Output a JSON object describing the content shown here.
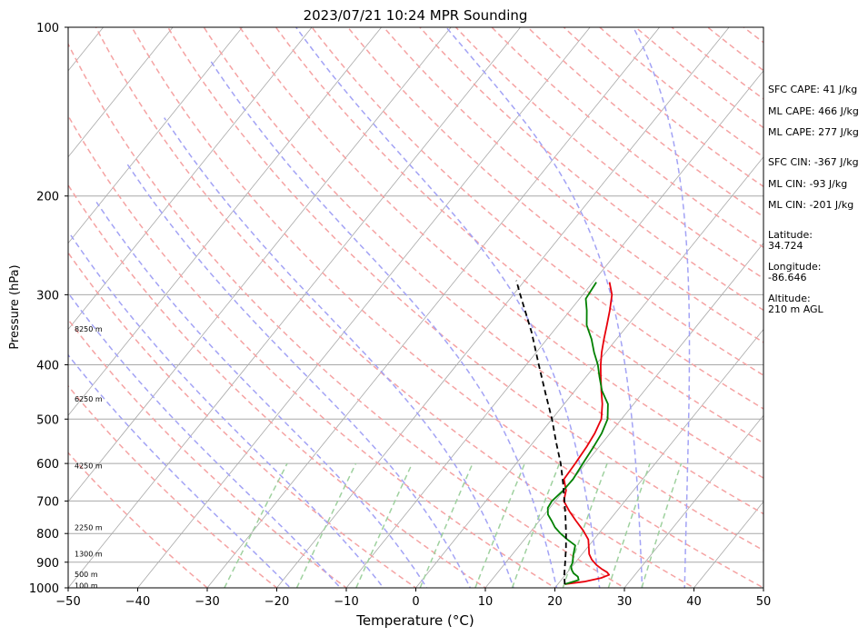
{
  "chart_data": {
    "type": "skew-t",
    "title": "2023/07/21 10:24 MPR Sounding",
    "xlabel": "Temperature (°C)",
    "ylabel": "Pressure (hPa)",
    "xlim": [
      -50,
      50
    ],
    "ylim": [
      1000,
      100
    ],
    "x_ticks": [
      -50,
      -40,
      -30,
      -20,
      -10,
      0,
      10,
      20,
      30,
      40,
      50
    ],
    "y_ticks": [
      1000,
      900,
      800,
      700,
      600,
      500,
      400,
      300,
      200,
      100
    ],
    "y_scale": "log",
    "grid": true,
    "colors": {
      "temperature": "#e8000b",
      "dewpoint": "#008000",
      "parcel": "#000000",
      "isotherm": "#a8a8a8",
      "dry_adiabat": "#f5a3a3",
      "moist_adiabat": "#a3a3f5",
      "mixing_ratio": "#9fd19f"
    },
    "temperature": {
      "pressure": [
        985,
        975,
        960,
        948,
        938,
        925,
        910,
        890,
        870,
        850,
        820,
        790,
        760,
        730,
        700,
        670,
        640,
        600,
        560,
        530,
        500,
        470,
        445,
        420,
        400,
        380,
        360,
        340,
        320,
        300,
        285
      ],
      "values": [
        21.0,
        23.5,
        25.5,
        26.3,
        25.7,
        24.5,
        23.3,
        22.0,
        21.0,
        20.3,
        19.2,
        17.4,
        15.3,
        13.2,
        11.2,
        10.3,
        8.7,
        8.5,
        8.2,
        7.8,
        7.1,
        5.5,
        3.8,
        2.1,
        0.7,
        -0.6,
        -1.8,
        -3.0,
        -4.3,
        -5.8,
        -7.6
      ]
    },
    "dewpoint": {
      "pressure": [
        985,
        968,
        955,
        942,
        930,
        915,
        900,
        880,
        860,
        840,
        820,
        800,
        780,
        760,
        740,
        720,
        700,
        670,
        640,
        600,
        560,
        530,
        500,
        470,
        445,
        420,
        400,
        380,
        360,
        340,
        320,
        305,
        295,
        285
      ],
      "values": [
        21.0,
        22.5,
        22.0,
        21.0,
        20.4,
        19.8,
        19.6,
        19.0,
        18.5,
        18.0,
        16.2,
        14.5,
        13.0,
        11.8,
        10.5,
        9.7,
        9.5,
        9.9,
        10.0,
        9.6,
        9.2,
        8.8,
        8.0,
        6.3,
        3.9,
        1.9,
        0.3,
        -1.7,
        -3.6,
        -5.9,
        -7.6,
        -9.1,
        -9.3,
        -9.5
      ]
    },
    "parcel": {
      "pressure": [
        985,
        950,
        900,
        850,
        800,
        750,
        700,
        650,
        600,
        550,
        500,
        450,
        400,
        350,
        300,
        283
      ],
      "values": [
        21.0,
        19.9,
        18.5,
        17.0,
        15.3,
        13.4,
        11.3,
        9.0,
        6.4,
        3.3,
        0.0,
        -3.9,
        -8.2,
        -13.0,
        -19.0,
        -21.2
      ]
    },
    "altitude_labels": [
      "100 m",
      "500 m",
      "1300 m",
      "2250 m",
      "4250 m",
      "6250 m",
      "8250 m"
    ],
    "altitude_pressures": [
      990,
      945,
      870,
      780,
      605,
      460,
      345
    ],
    "annotations": [
      "SFC CAPE: 41 J/kg",
      "ML CAPE: 466 J/kg",
      "ML CAPE: 277 J/kg",
      "SFC CIN: -367 J/kg",
      "ML CIN: -93 J/kg",
      "ML CIN: -201 J/kg"
    ],
    "location": {
      "latitude_label": "Latitude:",
      "latitude_value": "34.724",
      "longitude_label": "Longitude:",
      "longitude_value": "-86.646",
      "altitude_label": "Altitude:",
      "altitude_value": "210 m AGL"
    }
  }
}
